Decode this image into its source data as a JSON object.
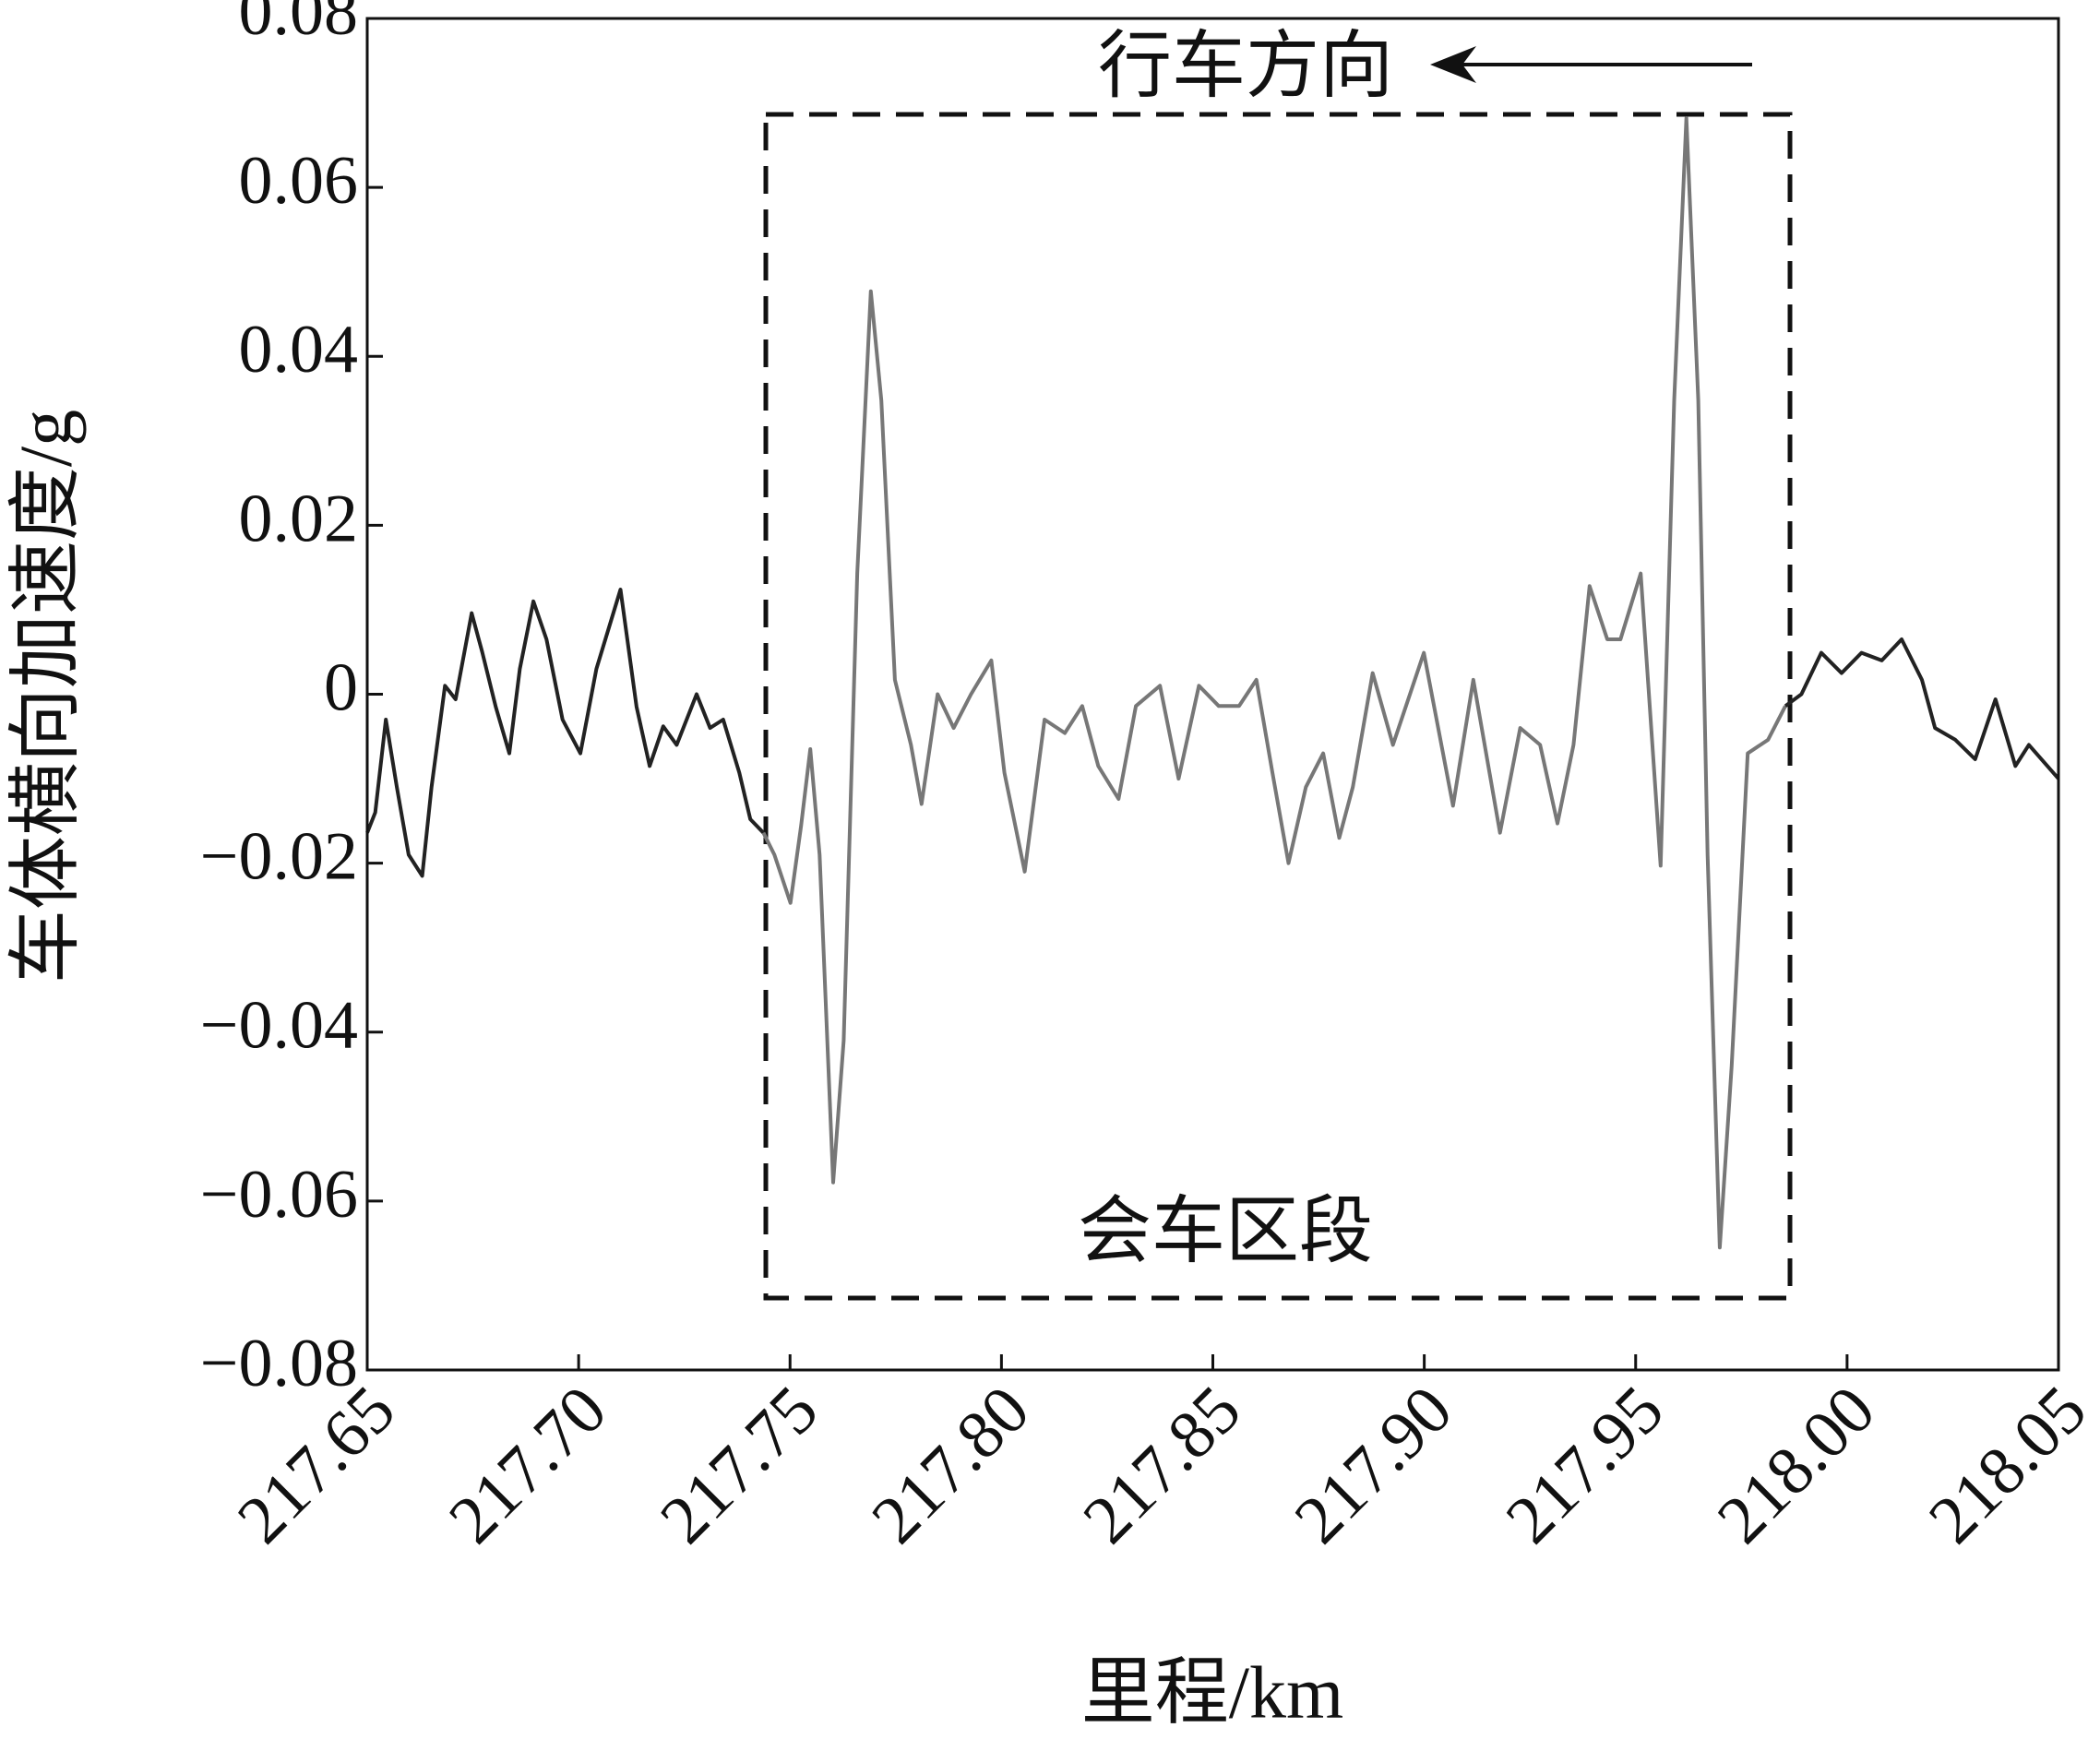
{
  "chart_data": {
    "type": "line",
    "x_label": "里程/km",
    "y_label": "车体横向加速度/g",
    "direction_label": "行车方向",
    "section_label": "会车区段",
    "xlim": [
      217.65,
      218.05
    ],
    "xticks": [
      217.65,
      {
        "value": 217.7,
        "label": "217.70"
      },
      217.75,
      {
        "value": 217.8,
        "label": "217.80"
      },
      217.85,
      {
        "value": 217.9,
        "label": "217.90"
      },
      217.95,
      {
        "value": 218.0,
        "label": "218.00"
      },
      218.05
    ],
    "ylim": [
      -0.08,
      0.08
    ],
    "yticks": [
      {
        "value": -0.08,
        "label": "−0.08"
      },
      {
        "value": -0.06,
        "label": "−0.06"
      },
      {
        "value": -0.04,
        "label": "−0.04"
      },
      {
        "value": -0.02,
        "label": "−0.02"
      },
      0,
      0.02,
      0.04,
      0.06,
      0.08
    ],
    "grid": false,
    "series": [
      {
        "color": "#222222",
        "x": [
          217.65,
          217.6519,
          217.6544,
          217.657,
          217.6598,
          217.663,
          217.6652,
          217.6684,
          217.6709,
          217.6747,
          217.6772,
          217.6804,
          217.6836,
          217.6861,
          217.6893,
          217.6924,
          217.6962,
          217.7004,
          217.7042,
          217.7099,
          217.7137,
          217.7168,
          217.72,
          217.7232,
          217.7279,
          217.7311,
          217.7342,
          217.738,
          217.7406,
          217.7437
        ],
        "values": [
          -0.0164,
          -0.014,
          -0.003,
          -0.011,
          -0.019,
          -0.0215,
          -0.011,
          0.001,
          -0.0006,
          0.0096,
          0.005,
          -0.0015,
          -0.007,
          0.003,
          0.011,
          0.0065,
          -0.003,
          -0.007,
          0.003,
          0.0124,
          -0.0015,
          -0.0085,
          -0.0038,
          -0.006,
          0.0,
          -0.004,
          -0.003,
          -0.0093,
          -0.0148,
          -0.0164
        ]
      },
      {
        "color": "#777777",
        "x": [
          217.7437,
          217.7463,
          217.7501,
          217.7526,
          217.7548,
          217.757,
          217.7602,
          217.7627,
          217.7659,
          217.7691,
          217.7716,
          217.7748,
          217.7786,
          217.7811,
          217.7849,
          217.7887,
          217.7928,
          217.7976,
          217.8007,
          217.8055,
          217.8102,
          217.815,
          217.8191,
          217.8229,
          217.8277,
          217.8318,
          217.8375,
          217.8419,
          217.8467,
          217.8514,
          217.8562,
          217.8603,
          217.8641,
          217.8679,
          217.872,
          217.8761,
          217.8799,
          217.8831,
          217.8878,
          217.8926,
          217.8999,
          217.9068,
          217.9116,
          217.9179,
          217.9227,
          217.9274,
          217.9315,
          217.9353,
          217.9391,
          217.9433,
          217.9464,
          217.9512,
          217.9559,
          217.9591,
          217.962,
          217.9648,
          217.967,
          217.9699,
          217.9727,
          217.9765,
          217.9813,
          217.9854
        ],
        "values": [
          -0.0164,
          -0.019,
          -0.0247,
          -0.0156,
          -0.0065,
          -0.019,
          -0.0578,
          -0.041,
          0.0143,
          0.0477,
          0.0348,
          0.0017,
          -0.006,
          -0.013,
          0.0,
          -0.004,
          0.0,
          0.004,
          -0.0093,
          -0.021,
          -0.003,
          -0.0046,
          -0.0014,
          -0.0085,
          -0.0124,
          -0.0014,
          0.001,
          -0.01,
          0.001,
          -0.0014,
          -0.0014,
          0.0017,
          -0.0093,
          -0.02,
          -0.011,
          -0.007,
          -0.017,
          -0.011,
          0.0025,
          -0.006,
          0.0049,
          -0.0132,
          0.0017,
          -0.0164,
          -0.004,
          -0.006,
          -0.0153,
          -0.006,
          0.0128,
          0.0065,
          0.0065,
          0.0143,
          -0.0203,
          0.0348,
          0.0682,
          0.0348,
          -0.019,
          -0.0655,
          -0.044,
          -0.007,
          -0.0054,
          -0.0014
        ]
      },
      {
        "color": "#222222",
        "x": [
          217.9854,
          217.9892,
          217.9939,
          217.9987,
          218.0034,
          218.0082,
          218.0129,
          218.0177,
          218.0208,
          218.0256,
          218.0303,
          218.0351,
          218.0398,
          218.043,
          218.05
        ],
        "values": [
          -0.0014,
          0.0,
          0.0049,
          0.0025,
          0.0049,
          0.004,
          0.0065,
          0.0017,
          -0.004,
          -0.0054,
          -0.0077,
          -0.0006,
          -0.0085,
          -0.006,
          -0.01
        ]
      }
    ]
  }
}
